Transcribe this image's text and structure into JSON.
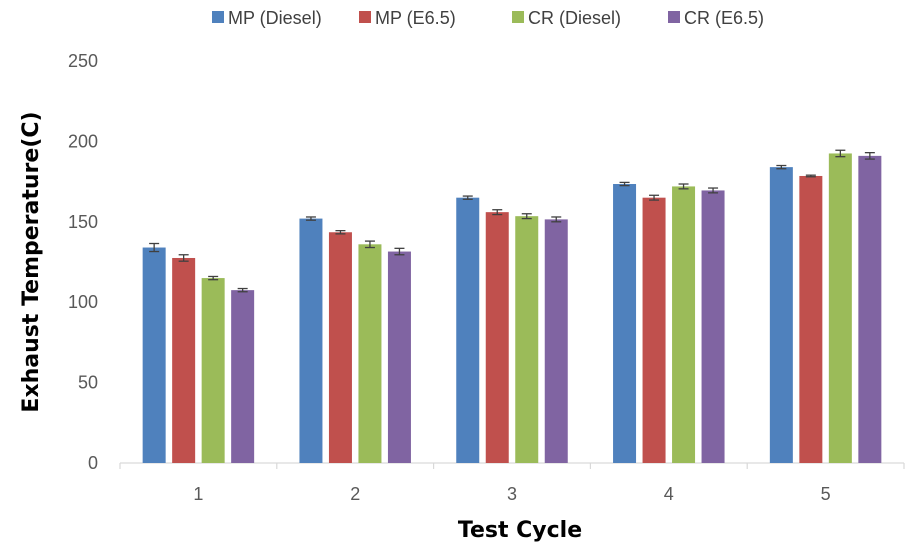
{
  "chart_data": {
    "type": "bar",
    "title": "",
    "xlabel": "Test Cycle",
    "ylabel": "Exhaust Temperature(C)",
    "ylim": [
      0,
      250
    ],
    "yticks": [
      0,
      50,
      100,
      150,
      200,
      250
    ],
    "categories": [
      "1",
      "2",
      "3",
      "4",
      "5"
    ],
    "legend_position": "top",
    "grid": false,
    "series": [
      {
        "name": "MP (Diesel)",
        "color": "#4F81BD",
        "values": [
          134,
          152,
          165,
          173.5,
          184
        ],
        "errors": [
          2.5,
          1,
          1,
          1,
          1
        ]
      },
      {
        "name": "MP (E6.5)",
        "color": "#C0504D",
        "values": [
          127.5,
          143.5,
          156,
          165,
          178.5
        ],
        "errors": [
          2,
          1,
          1.5,
          1.5,
          0.5
        ]
      },
      {
        "name": "CR (Diesel)",
        "color": "#9BBB59",
        "values": [
          115,
          136,
          153.5,
          172,
          192.5
        ],
        "errors": [
          1,
          2,
          1.5,
          1.5,
          2
        ]
      },
      {
        "name": "CR (E6.5)",
        "color": "#8064A2",
        "values": [
          107.5,
          131.5,
          151.5,
          169.5,
          191
        ],
        "errors": [
          1,
          2,
          1.5,
          1.5,
          2
        ]
      }
    ]
  }
}
